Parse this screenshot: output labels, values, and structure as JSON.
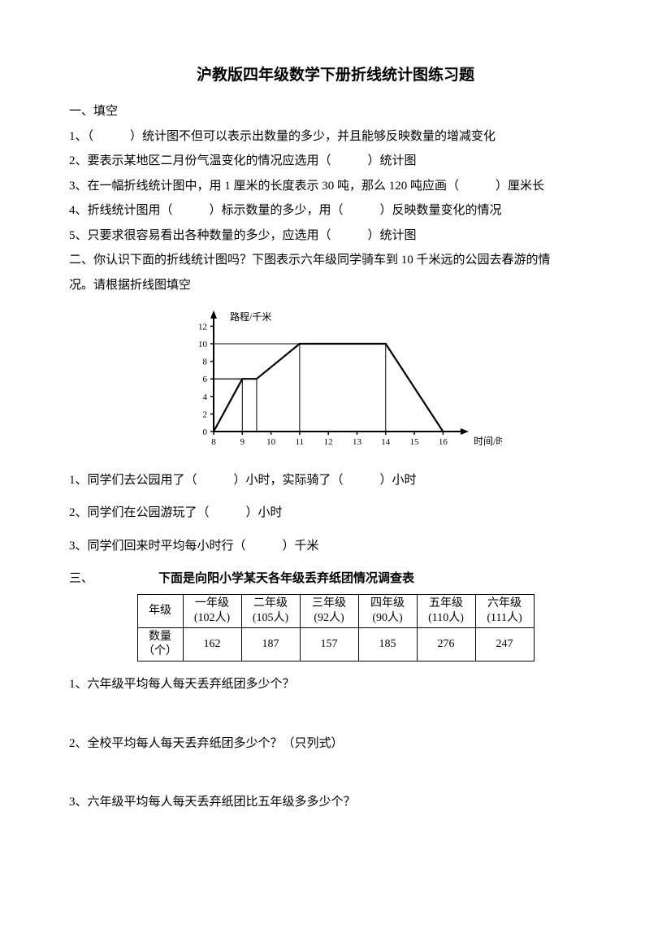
{
  "title": "沪教版四年级数学下册折线统计图练习题",
  "section1": {
    "heading": "一、填空",
    "q1": "1、（　　　）统计图不但可以表示出数量的多少，并且能够反映数量的增减变化",
    "q2": "2、要表示某地区二月份气温变化的情况应选用（　　　）统计图",
    "q3": "3、在一幅折线统计图中，用 1 厘米的长度表示 30 吨，那么 120 吨应画（　　　）厘米长",
    "q4": "4、折线统计图用（　　　）标示数量的多少，用（　　　）反映数量变化的情况",
    "q5": "5、只要求很容易看出各种数量的多少，应选用（　　　）统计图"
  },
  "section2": {
    "heading_a": "二、你认识下面的折线统计图吗？下图表示六年级同学骑车到 10 千米远的公园去春游的情",
    "heading_b": "况。请根据折线图填空",
    "q1": "1、同学们去公园用了（　　　）小时，实际骑了（　　　）小时",
    "q2": "2、同学们在公园游玩了（　　　）小时",
    "q3": "3、同学们回来时平均每小时行（　　　）千米"
  },
  "chart": {
    "type": "line",
    "y_label": "路程/千米",
    "x_label": "时间/时",
    "y_ticks": [
      0,
      2,
      4,
      6,
      8,
      10,
      12
    ],
    "x_ticks": [
      8,
      9,
      10,
      11,
      12,
      13,
      14,
      15,
      16
    ],
    "points": [
      [
        8,
        0
      ],
      [
        9,
        6
      ],
      [
        9.5,
        6
      ],
      [
        11,
        10
      ],
      [
        14,
        10
      ],
      [
        16,
        0
      ]
    ],
    "axis_color": "#000000",
    "line_color": "#000000",
    "tick_fontsize": 11,
    "label_fontsize": 12
  },
  "section3": {
    "heading": "三、",
    "caption": "下面是向阳小学某天各年级丢弃纸团情况调查表",
    "table": {
      "header_row1": [
        "年级",
        "一年级",
        "二年级",
        "三年级",
        "四年级",
        "五年级",
        "六年级"
      ],
      "header_row2": [
        "(102人)",
        "(105人)",
        "(92人)",
        "(90人)",
        "(110人)",
        "(111人)"
      ],
      "row_label": "数量\n（个）",
      "row_values": [
        "162",
        "187",
        "157",
        "185",
        "276",
        "247"
      ]
    },
    "q1": "1、六年级平均每人每天丢弃纸团多少个？",
    "q2": "2、全校平均每人每天丢弃纸团多少个？（只列式）",
    "q3": "3、六年级平均每人每天丢弃纸团比五年级多多少个？"
  }
}
